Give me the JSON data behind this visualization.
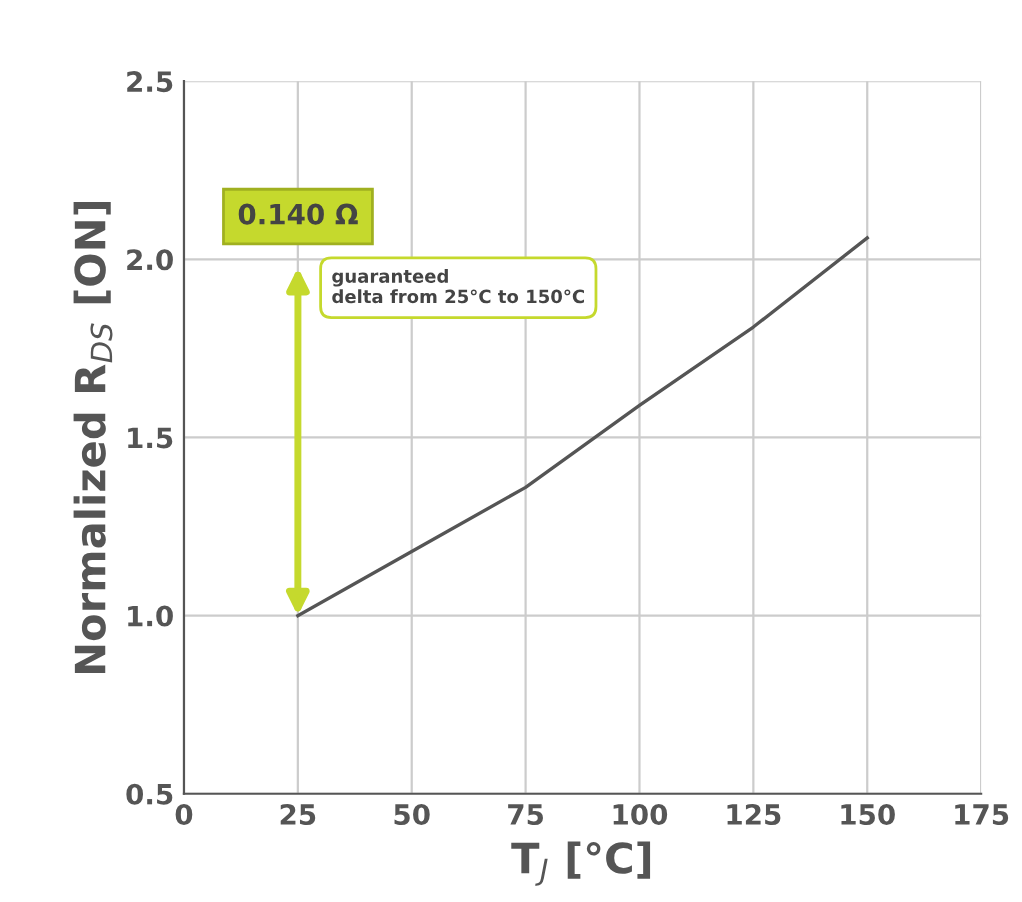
{
  "chart_data": {
    "type": "line",
    "x": [
      25,
      50,
      75,
      100,
      125,
      150
    ],
    "series": [
      {
        "color": "#555555",
        "values": [
          1.0,
          1.18,
          1.36,
          1.59,
          1.81,
          2.06
        ]
      }
    ],
    "xlabel": "T$_{J}$ [°C]",
    "ylabel": "Normalized R$_{DS}$ [ON]",
    "xlim": [
      0,
      175
    ],
    "xticks": [
      0,
      25,
      50,
      75,
      100,
      125,
      150,
      175
    ],
    "ylim": [
      0.5,
      2.5
    ],
    "yticks": [
      0.5,
      {
        "value": 1,
        "label": "1.0"
      },
      1.5,
      {
        "value": 2,
        "label": "2.0"
      },
      2.5
    ],
    "grid": true,
    "marker": "none",
    "line_style": "solid",
    "annotations": [
      "0.140 Ω",
      "guaranteed\ndelta from 25°C to 150°C"
    ]
  }
}
